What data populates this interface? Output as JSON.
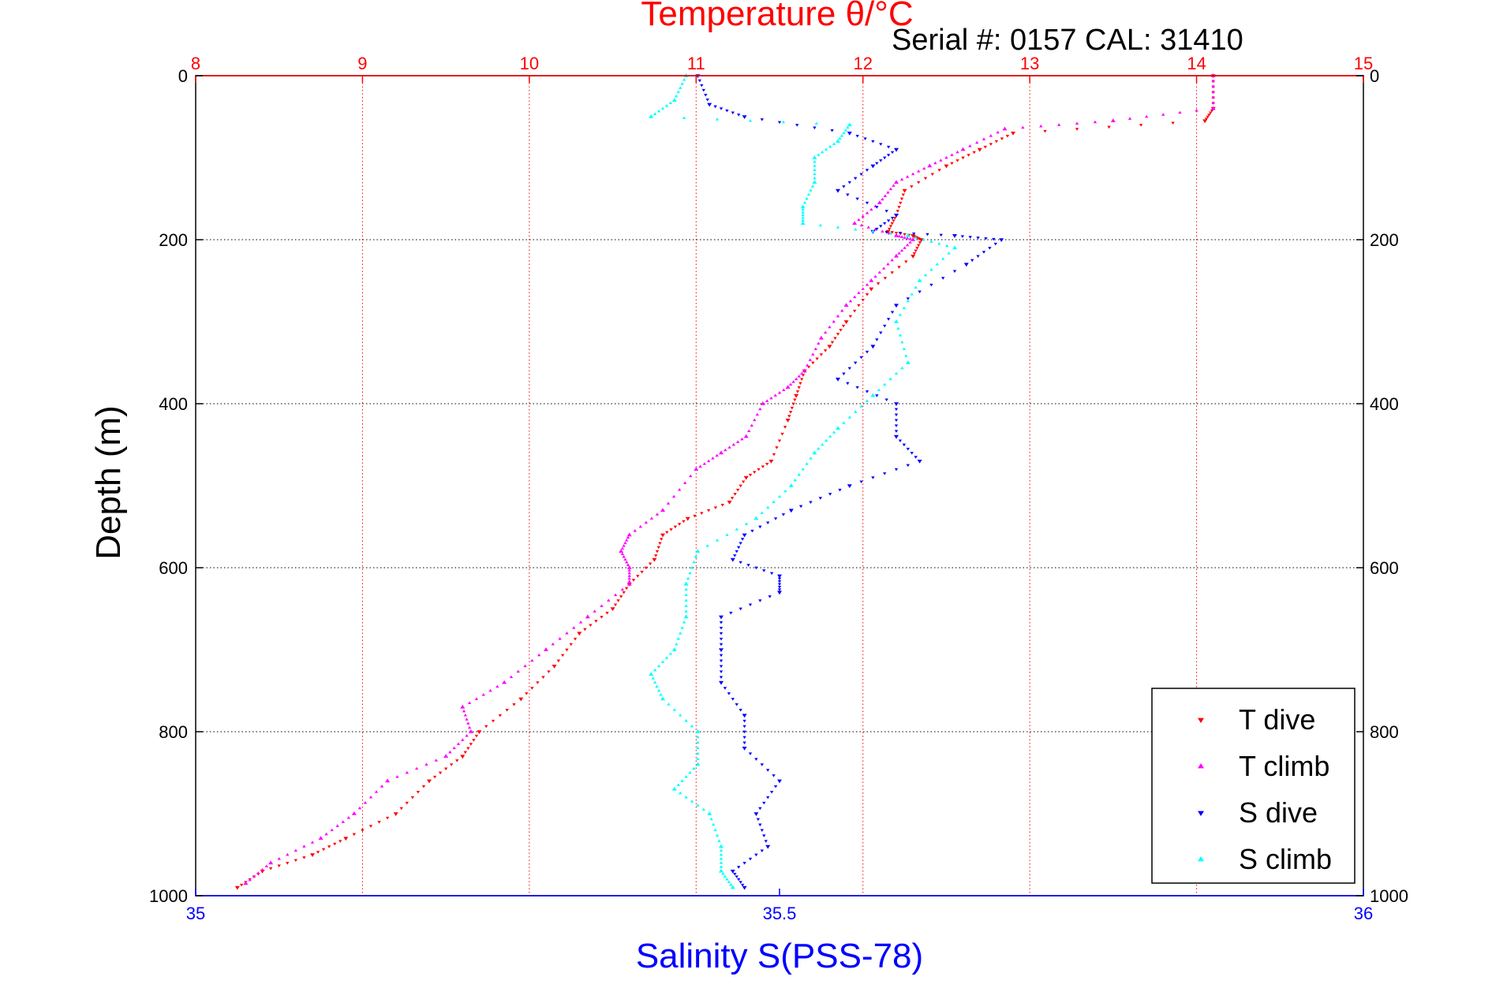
{
  "chart_data": {
    "type": "scatter",
    "title_top": "Temperature θ/°C",
    "annotation": "Serial #: 0157  CAL: 31410",
    "xlabel": "Salinity S(PSS-78)",
    "ylabel": "Depth (m)",
    "temperature_axis": {
      "range": [
        8,
        15
      ],
      "ticks": [
        8,
        9,
        10,
        11,
        12,
        13,
        14,
        15
      ]
    },
    "salinity_axis": {
      "range": [
        35,
        36
      ],
      "ticks": [
        35,
        35.5,
        36
      ]
    },
    "depth_axis": {
      "range": [
        0,
        1000
      ],
      "ticks": [
        0,
        200,
        400,
        600,
        800,
        1000
      ],
      "reversed": true
    },
    "grid": true,
    "legend_position": "bottom-right",
    "series": [
      {
        "name": "T dive",
        "axis": "temperature",
        "color": "#ff0000",
        "marker": "triangle-down",
        "points": [
          [
            14.1,
            0
          ],
          [
            14.1,
            40
          ],
          [
            14.05,
            55
          ],
          [
            12.9,
            70
          ],
          [
            12.7,
            90
          ],
          [
            12.5,
            110
          ],
          [
            12.25,
            140
          ],
          [
            12.2,
            170
          ],
          [
            12.15,
            190
          ],
          [
            12.3,
            195
          ],
          [
            12.35,
            200
          ],
          [
            12.3,
            220
          ],
          [
            12.05,
            260
          ],
          [
            11.9,
            300
          ],
          [
            11.8,
            330
          ],
          [
            11.65,
            360
          ],
          [
            11.6,
            390
          ],
          [
            11.55,
            420
          ],
          [
            11.45,
            470
          ],
          [
            11.3,
            490
          ],
          [
            11.2,
            520
          ],
          [
            10.95,
            540
          ],
          [
            10.8,
            560
          ],
          [
            10.75,
            590
          ],
          [
            10.6,
            620
          ],
          [
            10.5,
            650
          ],
          [
            10.3,
            680
          ],
          [
            10.15,
            720
          ],
          [
            9.95,
            760
          ],
          [
            9.7,
            800
          ],
          [
            9.6,
            830
          ],
          [
            9.4,
            860
          ],
          [
            9.2,
            900
          ],
          [
            8.9,
            930
          ],
          [
            8.7,
            950
          ],
          [
            8.4,
            970
          ],
          [
            8.25,
            990
          ]
        ]
      },
      {
        "name": "T climb",
        "axis": "temperature",
        "color": "#ff00ff",
        "marker": "triangle-up",
        "points": [
          [
            14.1,
            0
          ],
          [
            14.1,
            40
          ],
          [
            13.5,
            55
          ],
          [
            12.85,
            65
          ],
          [
            12.6,
            90
          ],
          [
            12.4,
            110
          ],
          [
            12.2,
            130
          ],
          [
            12.1,
            155
          ],
          [
            11.95,
            180
          ],
          [
            12.2,
            195
          ],
          [
            12.3,
            200
          ],
          [
            12.2,
            220
          ],
          [
            12.05,
            250
          ],
          [
            11.9,
            280
          ],
          [
            11.75,
            320
          ],
          [
            11.65,
            360
          ],
          [
            11.55,
            380
          ],
          [
            11.4,
            400
          ],
          [
            11.3,
            440
          ],
          [
            11.15,
            460
          ],
          [
            11.0,
            480
          ],
          [
            10.8,
            530
          ],
          [
            10.6,
            560
          ],
          [
            10.55,
            580
          ],
          [
            10.6,
            600
          ],
          [
            10.6,
            620
          ],
          [
            10.35,
            660
          ],
          [
            10.1,
            700
          ],
          [
            9.85,
            740
          ],
          [
            9.6,
            770
          ],
          [
            9.65,
            800
          ],
          [
            9.5,
            830
          ],
          [
            9.15,
            860
          ],
          [
            8.95,
            900
          ],
          [
            8.75,
            930
          ],
          [
            8.45,
            960
          ],
          [
            8.3,
            985
          ]
        ]
      },
      {
        "name": "S dive",
        "axis": "salinity",
        "color": "#0000ff",
        "marker": "triangle-down",
        "points": [
          [
            35.43,
            0
          ],
          [
            35.44,
            35
          ],
          [
            35.47,
            50
          ],
          [
            35.56,
            70
          ],
          [
            35.6,
            90
          ],
          [
            35.58,
            110
          ],
          [
            35.55,
            140
          ],
          [
            35.6,
            170
          ],
          [
            35.58,
            190
          ],
          [
            35.65,
            195
          ],
          [
            35.69,
            200
          ],
          [
            35.66,
            230
          ],
          [
            35.6,
            280
          ],
          [
            35.58,
            330
          ],
          [
            35.55,
            370
          ],
          [
            35.6,
            400
          ],
          [
            35.6,
            440
          ],
          [
            35.62,
            470
          ],
          [
            35.56,
            500
          ],
          [
            35.51,
            530
          ],
          [
            35.47,
            560
          ],
          [
            35.46,
            590
          ],
          [
            35.5,
            610
          ],
          [
            35.5,
            630
          ],
          [
            35.45,
            660
          ],
          [
            35.45,
            700
          ],
          [
            35.45,
            740
          ],
          [
            35.47,
            780
          ],
          [
            35.47,
            820
          ],
          [
            35.5,
            860
          ],
          [
            35.48,
            900
          ],
          [
            35.49,
            940
          ],
          [
            35.46,
            970
          ],
          [
            35.47,
            990
          ]
        ]
      },
      {
        "name": "S climb",
        "axis": "salinity",
        "color": "#00ffff",
        "marker": "triangle-up",
        "points": [
          [
            35.42,
            0
          ],
          [
            35.41,
            30
          ],
          [
            35.39,
            50
          ],
          [
            35.56,
            60
          ],
          [
            35.55,
            80
          ],
          [
            35.53,
            100
          ],
          [
            35.53,
            130
          ],
          [
            35.52,
            160
          ],
          [
            35.52,
            180
          ],
          [
            35.61,
            195
          ],
          [
            35.65,
            210
          ],
          [
            35.62,
            250
          ],
          [
            35.6,
            300
          ],
          [
            35.61,
            350
          ],
          [
            35.58,
            390
          ],
          [
            35.55,
            430
          ],
          [
            35.53,
            460
          ],
          [
            35.51,
            500
          ],
          [
            35.48,
            540
          ],
          [
            35.43,
            580
          ],
          [
            35.42,
            620
          ],
          [
            35.42,
            660
          ],
          [
            35.41,
            700
          ],
          [
            35.39,
            730
          ],
          [
            35.4,
            760
          ],
          [
            35.43,
            800
          ],
          [
            35.43,
            840
          ],
          [
            35.41,
            870
          ],
          [
            35.44,
            900
          ],
          [
            35.45,
            940
          ],
          [
            35.45,
            970
          ],
          [
            35.46,
            990
          ]
        ]
      }
    ]
  }
}
